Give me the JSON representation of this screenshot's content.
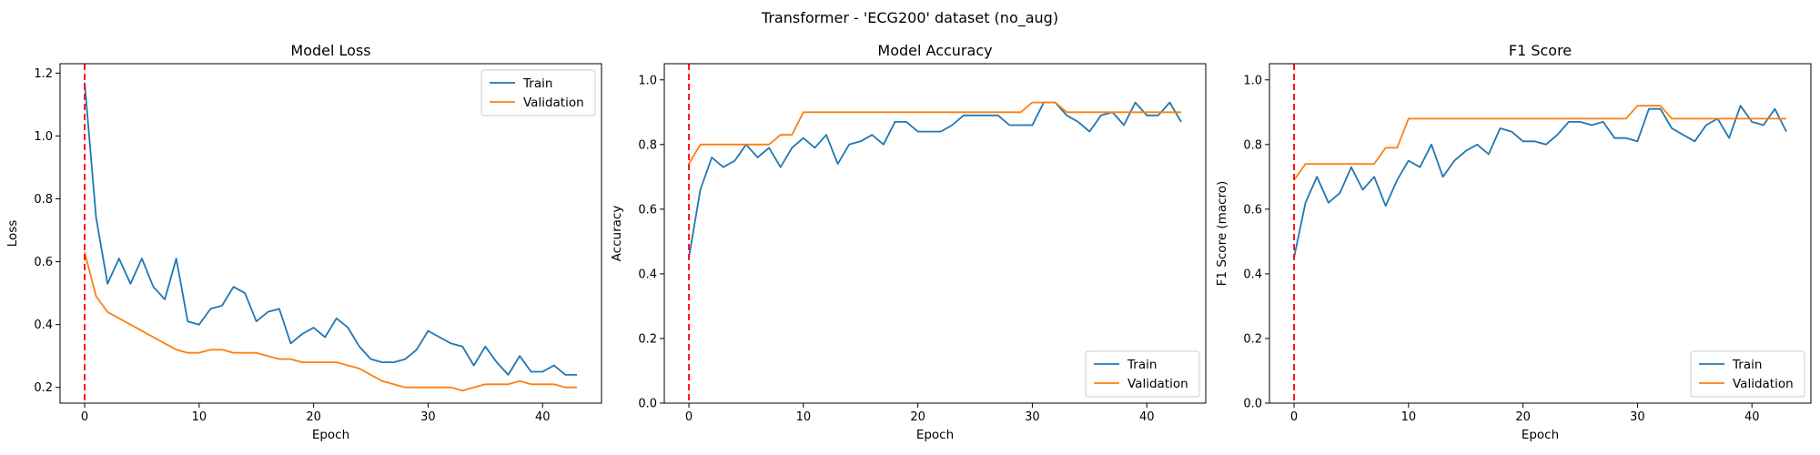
{
  "suptitle": "Transformer - 'ECG200' dataset (no_aug)",
  "colors": {
    "train": "#1f77b4",
    "validation": "#ff7f0e",
    "marker": "#ff0000"
  },
  "chart_data": [
    {
      "type": "line",
      "title": "Model Loss",
      "xlabel": "Epoch",
      "ylabel": "Loss",
      "xlim": [
        -2.15,
        45.15
      ],
      "ylim": [
        0.15,
        1.23
      ],
      "xticks": [
        0,
        10,
        20,
        30,
        40
      ],
      "yticks": [
        0.2,
        0.4,
        0.6,
        0.8,
        1.0,
        1.2
      ],
      "ytick_decimals": 1,
      "legend_loc": "upper right",
      "vline_x": 0,
      "x": [
        0,
        1,
        2,
        3,
        4,
        5,
        6,
        7,
        8,
        9,
        10,
        11,
        12,
        13,
        14,
        15,
        16,
        17,
        18,
        19,
        20,
        21,
        22,
        23,
        24,
        25,
        26,
        27,
        28,
        29,
        30,
        31,
        32,
        33,
        34,
        35,
        36,
        37,
        38,
        39,
        40,
        41,
        42,
        43
      ],
      "series": [
        {
          "name": "Train",
          "values": [
            1.17,
            0.74,
            0.53,
            0.61,
            0.53,
            0.61,
            0.52,
            0.48,
            0.61,
            0.41,
            0.4,
            0.45,
            0.46,
            0.52,
            0.5,
            0.41,
            0.44,
            0.45,
            0.34,
            0.37,
            0.39,
            0.36,
            0.42,
            0.39,
            0.33,
            0.29,
            0.28,
            0.28,
            0.29,
            0.32,
            0.38,
            0.36,
            0.34,
            0.33,
            0.27,
            0.33,
            0.28,
            0.24,
            0.3,
            0.25,
            0.25,
            0.27,
            0.24,
            0.24
          ]
        },
        {
          "name": "Validation",
          "values": [
            0.63,
            0.49,
            0.44,
            0.42,
            0.4,
            0.38,
            0.36,
            0.34,
            0.32,
            0.31,
            0.31,
            0.32,
            0.32,
            0.31,
            0.31,
            0.31,
            0.3,
            0.29,
            0.29,
            0.28,
            0.28,
            0.28,
            0.28,
            0.27,
            0.26,
            0.24,
            0.22,
            0.21,
            0.2,
            0.2,
            0.2,
            0.2,
            0.2,
            0.19,
            0.2,
            0.21,
            0.21,
            0.21,
            0.22,
            0.21,
            0.21,
            0.21,
            0.2,
            0.2
          ]
        }
      ]
    },
    {
      "type": "line",
      "title": "Model Accuracy",
      "xlabel": "Epoch",
      "ylabel": "Accuracy",
      "xlim": [
        -2.15,
        45.15
      ],
      "ylim": [
        0.0,
        1.05
      ],
      "xticks": [
        0,
        10,
        20,
        30,
        40
      ],
      "yticks": [
        0.0,
        0.2,
        0.4,
        0.6,
        0.8,
        1.0
      ],
      "ytick_decimals": 1,
      "legend_loc": "lower right",
      "vline_x": 0,
      "x": [
        0,
        1,
        2,
        3,
        4,
        5,
        6,
        7,
        8,
        9,
        10,
        11,
        12,
        13,
        14,
        15,
        16,
        17,
        18,
        19,
        20,
        21,
        22,
        23,
        24,
        25,
        26,
        27,
        28,
        29,
        30,
        31,
        32,
        33,
        34,
        35,
        36,
        37,
        38,
        39,
        40,
        41,
        42,
        43
      ],
      "series": [
        {
          "name": "Train",
          "values": [
            0.45,
            0.66,
            0.76,
            0.73,
            0.75,
            0.8,
            0.76,
            0.79,
            0.73,
            0.79,
            0.82,
            0.79,
            0.83,
            0.74,
            0.8,
            0.81,
            0.83,
            0.8,
            0.87,
            0.87,
            0.84,
            0.84,
            0.84,
            0.86,
            0.89,
            0.89,
            0.89,
            0.89,
            0.86,
            0.86,
            0.86,
            0.93,
            0.93,
            0.89,
            0.87,
            0.84,
            0.89,
            0.9,
            0.86,
            0.93,
            0.89,
            0.89,
            0.93,
            0.87
          ]
        },
        {
          "name": "Validation",
          "values": [
            0.74,
            0.8,
            0.8,
            0.8,
            0.8,
            0.8,
            0.8,
            0.8,
            0.83,
            0.83,
            0.9,
            0.9,
            0.9,
            0.9,
            0.9,
            0.9,
            0.9,
            0.9,
            0.9,
            0.9,
            0.9,
            0.9,
            0.9,
            0.9,
            0.9,
            0.9,
            0.9,
            0.9,
            0.9,
            0.9,
            0.93,
            0.93,
            0.93,
            0.9,
            0.9,
            0.9,
            0.9,
            0.9,
            0.9,
            0.9,
            0.9,
            0.9,
            0.9,
            0.9
          ]
        }
      ]
    },
    {
      "type": "line",
      "title": "F1 Score",
      "xlabel": "Epoch",
      "ylabel": "F1 Score (macro)",
      "xlim": [
        -2.15,
        45.15
      ],
      "ylim": [
        0.0,
        1.05
      ],
      "xticks": [
        0,
        10,
        20,
        30,
        40
      ],
      "yticks": [
        0.0,
        0.2,
        0.4,
        0.6,
        0.8,
        1.0
      ],
      "ytick_decimals": 1,
      "legend_loc": "lower right",
      "vline_x": 0,
      "x": [
        0,
        1,
        2,
        3,
        4,
        5,
        6,
        7,
        8,
        9,
        10,
        11,
        12,
        13,
        14,
        15,
        16,
        17,
        18,
        19,
        20,
        21,
        22,
        23,
        24,
        25,
        26,
        27,
        28,
        29,
        30,
        31,
        32,
        33,
        34,
        35,
        36,
        37,
        38,
        39,
        40,
        41,
        42,
        43
      ],
      "series": [
        {
          "name": "Train",
          "values": [
            0.45,
            0.62,
            0.7,
            0.62,
            0.65,
            0.73,
            0.66,
            0.7,
            0.61,
            0.69,
            0.75,
            0.73,
            0.8,
            0.7,
            0.75,
            0.78,
            0.8,
            0.77,
            0.85,
            0.84,
            0.81,
            0.81,
            0.8,
            0.83,
            0.87,
            0.87,
            0.86,
            0.87,
            0.82,
            0.82,
            0.81,
            0.91,
            0.91,
            0.85,
            0.83,
            0.81,
            0.86,
            0.88,
            0.82,
            0.92,
            0.87,
            0.86,
            0.91,
            0.84
          ]
        },
        {
          "name": "Validation",
          "values": [
            0.69,
            0.74,
            0.74,
            0.74,
            0.74,
            0.74,
            0.74,
            0.74,
            0.79,
            0.79,
            0.88,
            0.88,
            0.88,
            0.88,
            0.88,
            0.88,
            0.88,
            0.88,
            0.88,
            0.88,
            0.88,
            0.88,
            0.88,
            0.88,
            0.88,
            0.88,
            0.88,
            0.88,
            0.88,
            0.88,
            0.92,
            0.92,
            0.92,
            0.88,
            0.88,
            0.88,
            0.88,
            0.88,
            0.88,
            0.88,
            0.88,
            0.88,
            0.88,
            0.88
          ]
        }
      ]
    }
  ]
}
